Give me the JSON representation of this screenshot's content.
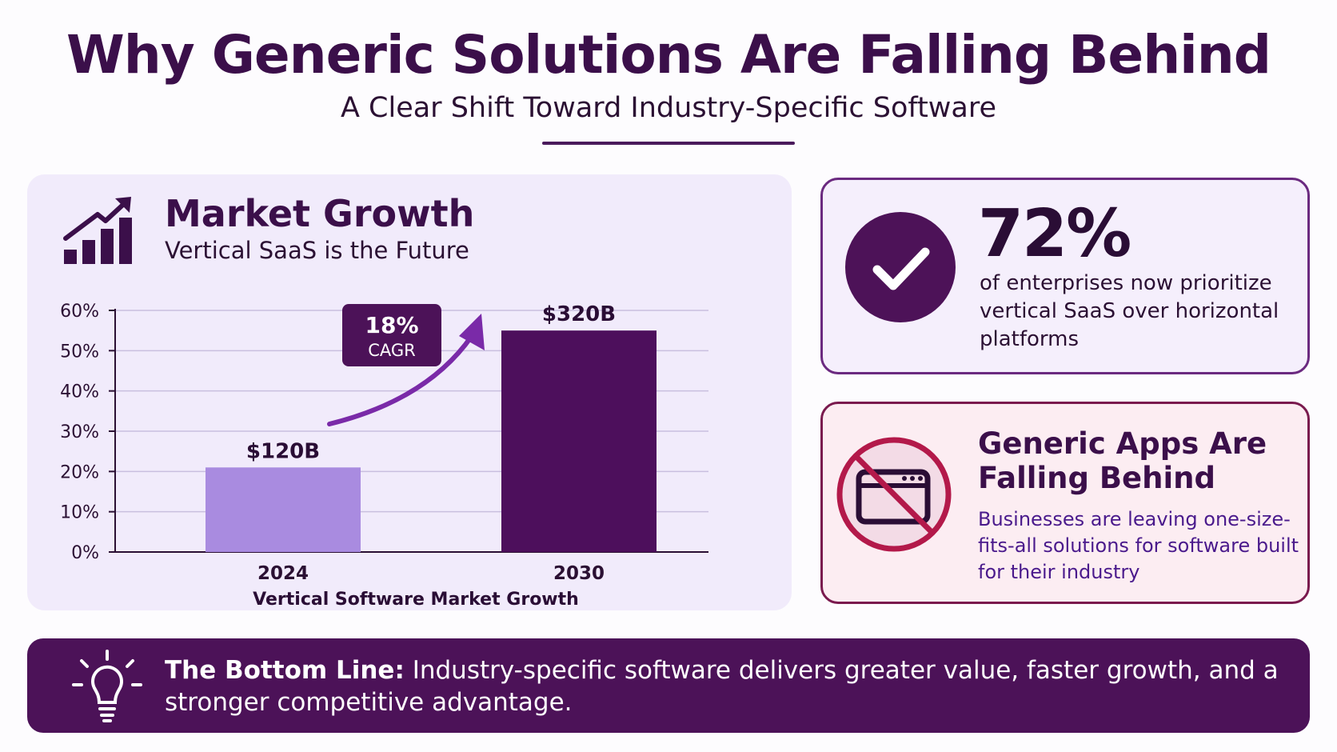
{
  "header": {
    "title": "Why Generic Solutions Are Falling Behind",
    "subtitle": "A Clear Shift Toward Industry-Specific Software"
  },
  "market_panel": {
    "title": "Market Growth",
    "subtitle": "Vertical SaaS is the Future",
    "icon": "growth-chart-icon"
  },
  "chart_data": {
    "type": "bar",
    "categories": [
      "2024",
      "2030"
    ],
    "values": [
      21,
      55
    ],
    "data_labels": [
      "$120B",
      "$320B"
    ],
    "bar_colors": [
      "#a98be0",
      "#4d0f5c"
    ],
    "ylim": [
      0,
      60
    ],
    "yticks": [
      0,
      10,
      20,
      30,
      40,
      50,
      60
    ],
    "ytick_labels": [
      "0%",
      "10%",
      "20%",
      "30%",
      "40%",
      "50%",
      "60%"
    ],
    "xlabel": "Vertical Software Market Growth",
    "ylabel": "",
    "grid": true,
    "annotation": {
      "line1": "18%",
      "line2": "CAGR"
    }
  },
  "stat_card": {
    "value": "72%",
    "text": "of enterprises now prioritize vertical SaaS over horizontal platforms",
    "icon": "check-icon"
  },
  "warning_card": {
    "title": "Generic Apps Are Falling Behind",
    "text": "Businesses are leaving one-size-fits-all solutions for software built for their industry",
    "icon": "no-generic-app-icon"
  },
  "bottom_line": {
    "label": "The Bottom Line:",
    "text": "Industry-specific software delivers greater value, faster growth, and a stronger competitive advantage.",
    "icon": "lightbulb-icon"
  },
  "colors": {
    "primary": "#4c1258",
    "accent": "#7a2aa8",
    "light_bar": "#a98be0",
    "warning": "#b3194a"
  }
}
